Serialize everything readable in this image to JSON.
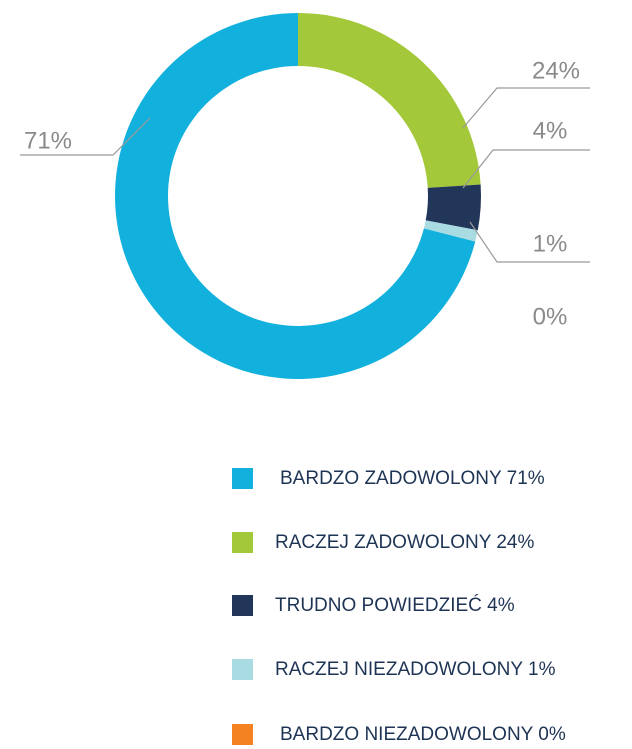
{
  "chart_data": {
    "type": "donut",
    "categories": [
      "BARDZO ZADOWOLONY",
      "RACZEJ ZADOWOLONY",
      "TRUDNO POWIEDZIEĆ",
      "RACZEJ NIEZADOWOLONY",
      "BARDZO NIEZADOWOLONY"
    ],
    "values": [
      71,
      24,
      4,
      1,
      0
    ],
    "value_labels": [
      "71%",
      "24%",
      "4%",
      "1%",
      "0%"
    ],
    "colors": [
      "#12b0dc",
      "#a3c93a",
      "#22365a",
      "#a9dbe3",
      "#f58220"
    ],
    "legend": "bottom"
  }
}
